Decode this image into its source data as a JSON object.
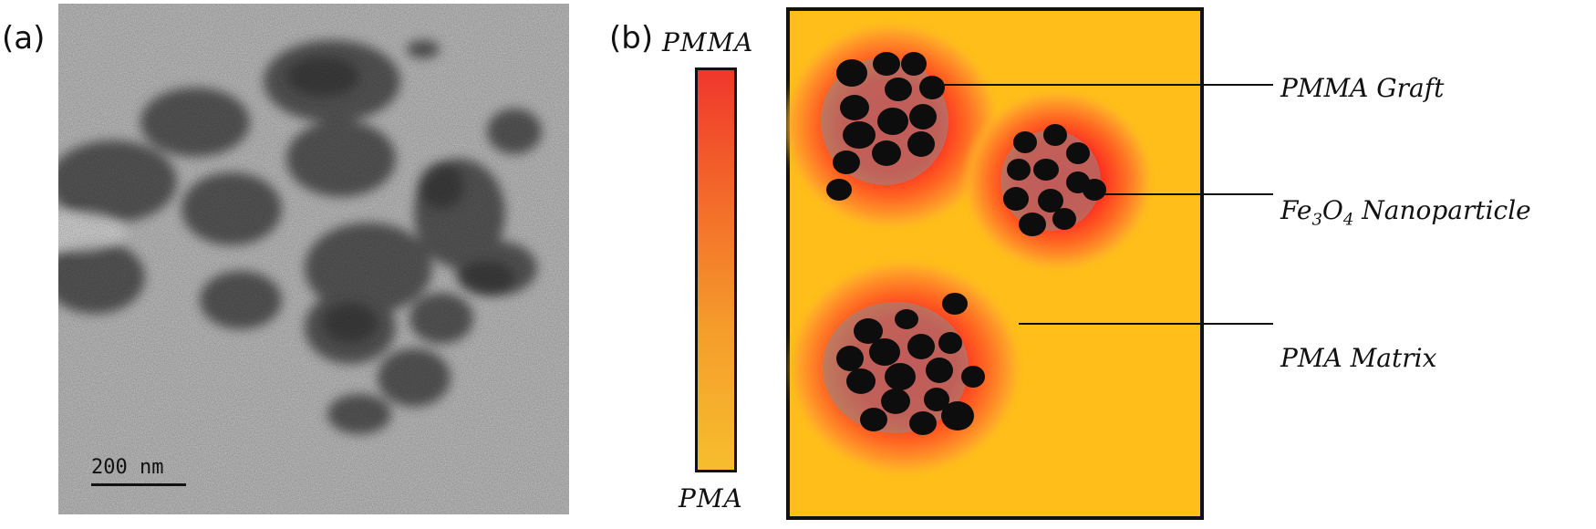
{
  "panel_a": {
    "label": "(a)",
    "scale_bar": "200 nm"
  },
  "panel_b": {
    "label": "(b)",
    "gradient_top": "PMMA",
    "gradient_bottom": "PMA",
    "callouts": {
      "graft": "PMMA Graft",
      "nanoparticle_prefix": "Fe",
      "nanoparticle_sub1": "3",
      "nanoparticle_mid": "O",
      "nanoparticle_sub2": "4",
      "nanoparticle_suffix": " Nanoparticle",
      "matrix": "PMA Matrix"
    },
    "colors": {
      "matrix": "#ffbe1a",
      "graft_inner": "#ff2a1a",
      "graft_outer": "#ff8a2a",
      "particle": "#0d0d0d",
      "gradient_top": "#f0372c",
      "gradient_bottom": "#f7bd2d"
    }
  }
}
